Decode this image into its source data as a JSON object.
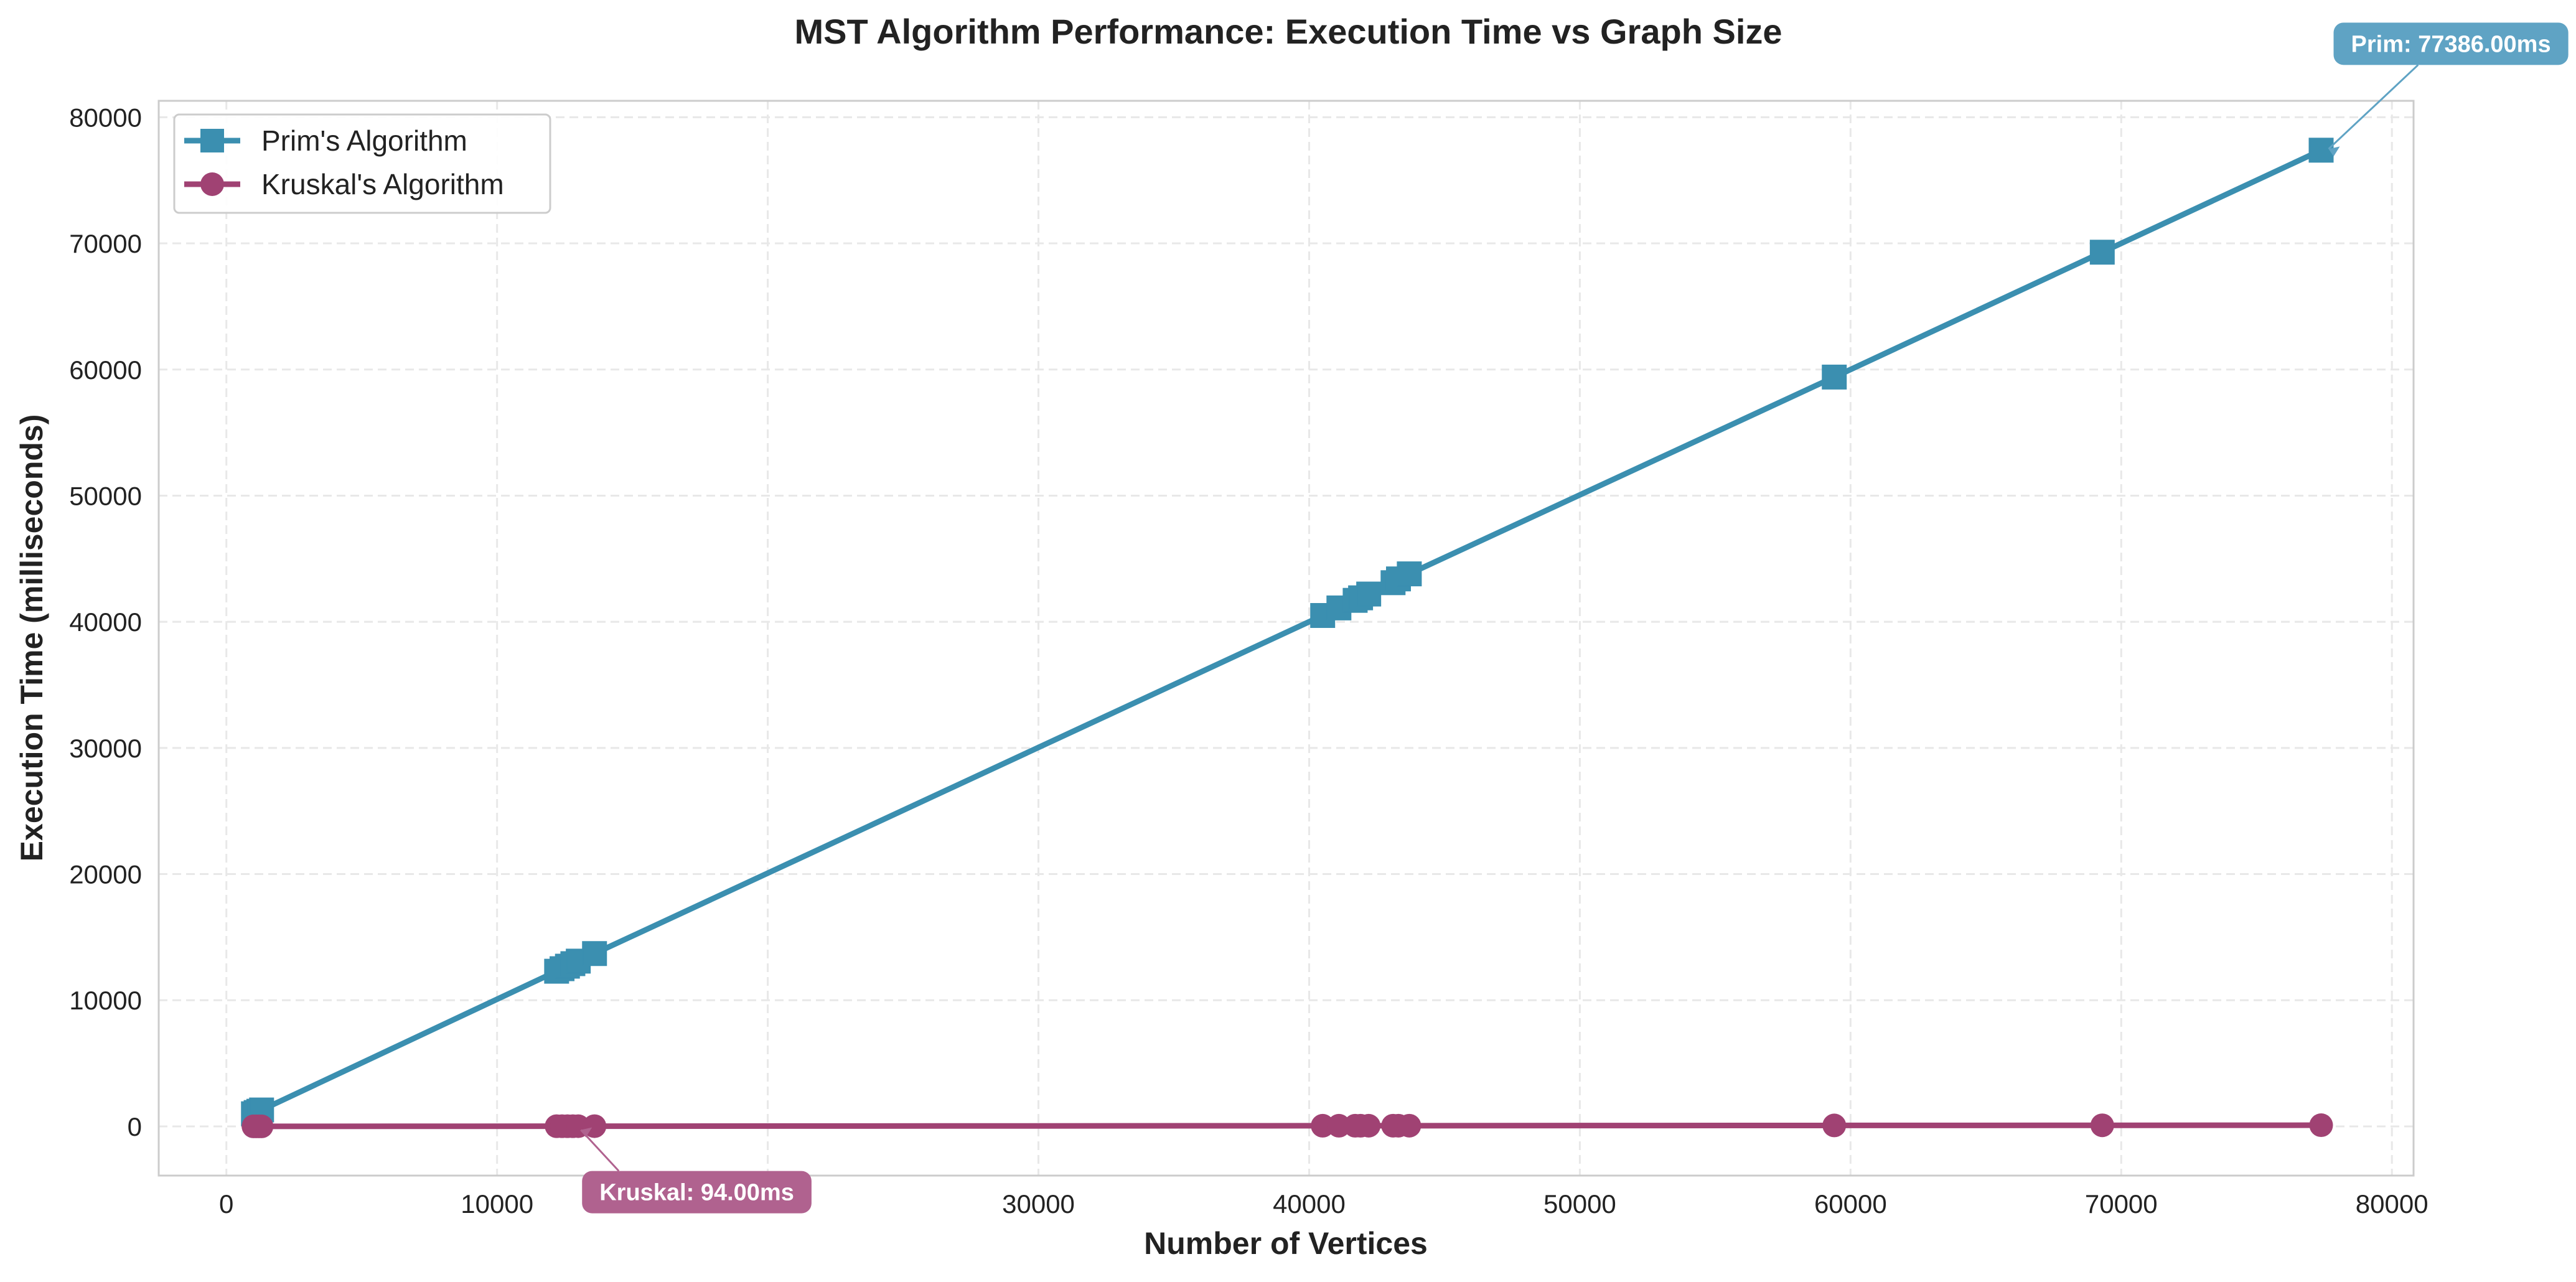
{
  "chart_data": {
    "type": "line",
    "title": "MST Algorithm Performance: Execution Time vs Graph Size",
    "xlabel": "Number of Vertices",
    "ylabel": "Execution Time (milliseconds)",
    "xlim": [
      -2500,
      80800
    ],
    "ylim": [
      -3900,
      81300
    ],
    "xticks": [
      0,
      10000,
      20000,
      30000,
      40000,
      50000,
      60000,
      70000,
      80000
    ],
    "yticks": [
      0,
      10000,
      20000,
      30000,
      40000,
      50000,
      60000,
      70000,
      80000
    ],
    "grid": true,
    "legend_position": "top-left",
    "x": [
      1000,
      1100,
      1200,
      1300,
      12200,
      12400,
      12600,
      12800,
      13000,
      13600,
      40500,
      41100,
      41700,
      41900,
      42200,
      43100,
      43300,
      43700,
      59400,
      69300,
      77386
    ],
    "series": [
      {
        "name": "Prim's Algorithm",
        "color": "#3b8fb0",
        "marker": "square",
        "values": [
          1000,
          1100,
          1200,
          1300,
          12300,
          12500,
          12700,
          12900,
          13100,
          13700,
          40500,
          41100,
          41700,
          41900,
          42200,
          43100,
          43400,
          43800,
          59400,
          69300,
          77386
        ]
      },
      {
        "name": "Kruskal's Algorithm",
        "color": "#a04273",
        "marker": "circle",
        "values": [
          2,
          2,
          2,
          2,
          15,
          15,
          15,
          15,
          16,
          17,
          50,
          51,
          52,
          52,
          53,
          54,
          54,
          55,
          75,
          85,
          94
        ]
      }
    ],
    "annotations": [
      {
        "text": "Prim: 77386.00ms",
        "series": 0,
        "x": 77386,
        "y": 77386,
        "color": "#5fa3c4"
      },
      {
        "text": "Kruskal: 94.00ms",
        "series": 1,
        "x": 13600,
        "y": 17,
        "color": "#b0628f"
      }
    ]
  }
}
